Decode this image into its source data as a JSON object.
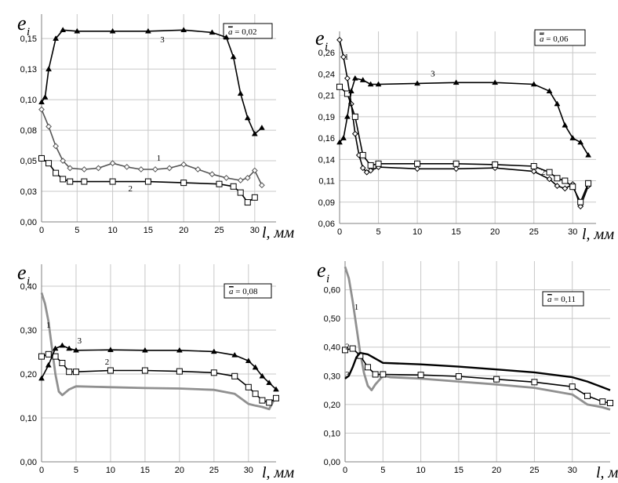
{
  "chart_data": [
    {
      "type": "line",
      "panel": "top-left",
      "ylabel": "e",
      "ylabel_sub": "i",
      "xlabel": "l, мм",
      "param_label": "a = 0,02",
      "param_bar_letter": "a",
      "param_value_text": " = 0,02",
      "xlim": [
        0,
        33
      ],
      "ylim": [
        0,
        0.17
      ],
      "x_ticks": [
        "0",
        "5",
        "10",
        "15",
        "20",
        "25",
        "30"
      ],
      "x_tick_values": [
        0,
        5,
        10,
        15,
        20,
        25,
        30
      ],
      "y_ticks": [
        "0,00",
        "0,03",
        "0,05",
        "0,08",
        "0,10",
        "0,13",
        "0,15"
      ],
      "y_tick_values": [
        0.0,
        0.025,
        0.05,
        0.075,
        0.1,
        0.125,
        0.15
      ],
      "grid": true,
      "series": [
        {
          "label": "1",
          "marker": "diamond",
          "color": "#555555",
          "x": [
            0,
            1,
            2,
            3,
            4,
            6,
            8,
            10,
            12,
            14,
            16,
            18,
            20,
            22,
            24,
            26,
            28,
            29,
            30,
            31
          ],
          "y": [
            0.092,
            0.078,
            0.062,
            0.05,
            0.044,
            0.043,
            0.044,
            0.048,
            0.045,
            0.043,
            0.043,
            0.044,
            0.047,
            0.043,
            0.039,
            0.036,
            0.034,
            0.036,
            0.042,
            0.03
          ]
        },
        {
          "label": "2",
          "marker": "square",
          "color": "#000000",
          "x": [
            0,
            1,
            2,
            3,
            4,
            6,
            10,
            15,
            20,
            25,
            27,
            28,
            29,
            30
          ],
          "y": [
            0.052,
            0.048,
            0.04,
            0.035,
            0.033,
            0.033,
            0.033,
            0.033,
            0.032,
            0.031,
            0.029,
            0.024,
            0.016,
            0.02
          ]
        },
        {
          "label": "3",
          "marker": "triangle",
          "color": "#000000",
          "x": [
            0,
            0.5,
            1,
            2,
            3,
            5,
            10,
            15,
            20,
            24,
            26,
            27,
            28,
            29,
            30,
            31
          ],
          "y": [
            0.098,
            0.102,
            0.125,
            0.15,
            0.157,
            0.156,
            0.156,
            0.156,
            0.157,
            0.155,
            0.151,
            0.135,
            0.105,
            0.085,
            0.072,
            0.077
          ]
        }
      ],
      "annotations": [
        {
          "text": "1",
          "x": 16.5,
          "y": 0.05
        },
        {
          "text": "2",
          "x": 12.5,
          "y": 0.025
        },
        {
          "text": "3",
          "x": 17.0,
          "y": 0.147
        }
      ]
    },
    {
      "type": "line",
      "panel": "top-right",
      "ylabel": "e",
      "ylabel_sub": "i",
      "xlabel": "l, мм",
      "param_label": "a = 0,06",
      "param_bar_letter": "a",
      "param_value_text": " = 0,06",
      "xlim": [
        0,
        33
      ],
      "ylim": [
        0.06,
        0.285
      ],
      "x_ticks": [
        "0",
        "5",
        "10",
        "15",
        "20",
        "25",
        "30"
      ],
      "x_tick_values": [
        0,
        5,
        10,
        15,
        20,
        25,
        30
      ],
      "y_ticks": [
        "0,06",
        "0,09",
        "0,11",
        "0,14",
        "0,16",
        "0,19",
        "0,21",
        "0,24",
        "0,26"
      ],
      "y_tick_values": [
        0.06,
        0.085,
        0.11,
        0.135,
        0.16,
        0.185,
        0.21,
        0.235,
        0.26
      ],
      "grid": true,
      "series": [
        {
          "label": "1",
          "marker": "diamond",
          "color": "#000000",
          "x": [
            0,
            0.5,
            1,
            1.5,
            2,
            2.5,
            3,
            3.5,
            4,
            5,
            10,
            15,
            20,
            25,
            27,
            28,
            29,
            30,
            31,
            32
          ],
          "y": [
            0.275,
            0.255,
            0.23,
            0.2,
            0.165,
            0.14,
            0.125,
            0.12,
            0.122,
            0.126,
            0.124,
            0.124,
            0.125,
            0.121,
            0.112,
            0.104,
            0.101,
            0.106,
            0.08,
            0.104
          ]
        },
        {
          "label": "2",
          "marker": "square",
          "color": "#000000",
          "x": [
            0,
            1,
            2,
            3,
            4,
            5,
            10,
            15,
            20,
            25,
            27,
            28,
            29,
            30,
            31,
            32
          ],
          "y": [
            0.22,
            0.212,
            0.185,
            0.14,
            0.128,
            0.13,
            0.13,
            0.13,
            0.129,
            0.127,
            0.12,
            0.113,
            0.11,
            0.103,
            0.085,
            0.107
          ]
        },
        {
          "label": "3",
          "marker": "triangle",
          "color": "#000000",
          "x": [
            0,
            0.5,
            1,
            1.5,
            2,
            3,
            4,
            5,
            10,
            15,
            20,
            25,
            27,
            28,
            29,
            30,
            31,
            32
          ],
          "y": [
            0.155,
            0.16,
            0.185,
            0.215,
            0.23,
            0.228,
            0.223,
            0.223,
            0.224,
            0.225,
            0.225,
            0.223,
            0.215,
            0.2,
            0.175,
            0.16,
            0.155,
            0.14
          ]
        }
      ],
      "annotations": [
        {
          "text": "1",
          "x": 0.9,
          "y": 0.252
        },
        {
          "text": "2",
          "x": 26.2,
          "y": 0.117
        },
        {
          "text": "3",
          "x": 12.0,
          "y": 0.232
        }
      ]
    },
    {
      "type": "line",
      "panel": "bottom-left",
      "ylabel": "e",
      "ylabel_sub": "i",
      "xlabel": "l, мм",
      "param_label": "a = 0,08",
      "param_bar_letter": "a",
      "param_value_text": " = 0,08",
      "xlim": [
        0,
        34
      ],
      "ylim": [
        0,
        0.45
      ],
      "x_ticks": [
        "0",
        "5",
        "10",
        "15",
        "20",
        "25",
        "30"
      ],
      "x_tick_values": [
        0,
        5,
        10,
        15,
        20,
        25,
        30
      ],
      "y_ticks": [
        "0,00",
        "0,10",
        "0,20",
        "0,30",
        "0,40"
      ],
      "y_tick_values": [
        0.0,
        0.1,
        0.2,
        0.3,
        0.4
      ],
      "grid": true,
      "series": [
        {
          "label": "1",
          "marker": "none",
          "color": "#909090",
          "x": [
            0,
            0.5,
            1,
            1.5,
            2,
            2.5,
            3,
            4,
            5,
            10,
            15,
            20,
            25,
            28,
            30,
            31,
            32,
            33,
            34
          ],
          "y": [
            0.385,
            0.36,
            0.32,
            0.26,
            0.2,
            0.16,
            0.152,
            0.165,
            0.172,
            0.17,
            0.168,
            0.167,
            0.164,
            0.155,
            0.132,
            0.128,
            0.125,
            0.12,
            0.15
          ]
        },
        {
          "label": "2",
          "marker": "square",
          "color": "#000000",
          "x": [
            0,
            1,
            2,
            3,
            4,
            5,
            10,
            15,
            20,
            25,
            28,
            30,
            31,
            32,
            33,
            34
          ],
          "y": [
            0.24,
            0.245,
            0.24,
            0.225,
            0.205,
            0.205,
            0.208,
            0.208,
            0.206,
            0.203,
            0.195,
            0.17,
            0.155,
            0.14,
            0.135,
            0.145
          ]
        },
        {
          "label": "3",
          "marker": "triangle",
          "color": "#000000",
          "x": [
            0,
            1,
            2,
            3,
            4,
            5,
            10,
            15,
            20,
            25,
            28,
            30,
            31,
            32,
            33,
            34
          ],
          "y": [
            0.19,
            0.22,
            0.258,
            0.265,
            0.258,
            0.254,
            0.255,
            0.254,
            0.254,
            0.251,
            0.243,
            0.23,
            0.215,
            0.195,
            0.18,
            0.165
          ]
        }
      ],
      "annotations": [
        {
          "text": "1",
          "x": 1.0,
          "y": 0.305
        },
        {
          "text": "2",
          "x": 9.5,
          "y": 0.221
        },
        {
          "text": "3",
          "x": 5.5,
          "y": 0.27
        }
      ]
    },
    {
      "type": "line",
      "panel": "bottom-right",
      "ylabel": "e",
      "ylabel_sub": "i",
      "xlabel": "l, мм",
      "param_label": "a = 0,11",
      "param_bar_letter": "a",
      "param_value_text": " = 0,11",
      "xlim": [
        0,
        35
      ],
      "ylim": [
        0,
        0.7
      ],
      "x_ticks": [
        "0",
        "5",
        "10",
        "15",
        "20",
        "25",
        "30"
      ],
      "x_tick_values": [
        0,
        5,
        10,
        15,
        20,
        25,
        30
      ],
      "y_ticks": [
        "0,00",
        "0,10",
        "0,20",
        "0,30",
        "0,40",
        "0,50",
        "0,60"
      ],
      "y_tick_values": [
        0.0,
        0.1,
        0.2,
        0.3,
        0.4,
        0.5,
        0.6
      ],
      "grid": true,
      "series": [
        {
          "label": "1",
          "marker": "none",
          "color": "#909090",
          "x": [
            0,
            0.5,
            1,
            1.5,
            2,
            2.5,
            3,
            3.5,
            4,
            5,
            6,
            10,
            15,
            20,
            25,
            30,
            32,
            34,
            35
          ],
          "y": [
            0.68,
            0.64,
            0.56,
            0.47,
            0.38,
            0.31,
            0.265,
            0.25,
            0.27,
            0.3,
            0.295,
            0.29,
            0.28,
            0.27,
            0.258,
            0.235,
            0.2,
            0.19,
            0.182
          ]
        },
        {
          "label": "2",
          "marker": "square",
          "color": "#000000",
          "x": [
            0,
            1,
            2,
            3,
            4,
            5,
            10,
            15,
            20,
            25,
            30,
            32,
            34,
            35
          ],
          "y": [
            0.39,
            0.395,
            0.37,
            0.33,
            0.305,
            0.305,
            0.303,
            0.298,
            0.288,
            0.278,
            0.262,
            0.23,
            0.21,
            0.205
          ]
        },
        {
          "label": "3",
          "marker": "none",
          "color": "#000000",
          "x": [
            0,
            0.5,
            1,
            1.5,
            2,
            3,
            4,
            5,
            10,
            15,
            20,
            25,
            30,
            32,
            34,
            35
          ],
          "y": [
            0.29,
            0.3,
            0.33,
            0.365,
            0.38,
            0.375,
            0.36,
            0.345,
            0.34,
            0.332,
            0.322,
            0.312,
            0.295,
            0.28,
            0.26,
            0.25
          ]
        }
      ],
      "annotations": [
        {
          "text": "1",
          "x": 1.5,
          "y": 0.53
        },
        {
          "text": "2",
          "x": 0.3,
          "y": 0.393
        },
        {
          "text": "3",
          "x": 0.3,
          "y": 0.295
        }
      ]
    }
  ]
}
